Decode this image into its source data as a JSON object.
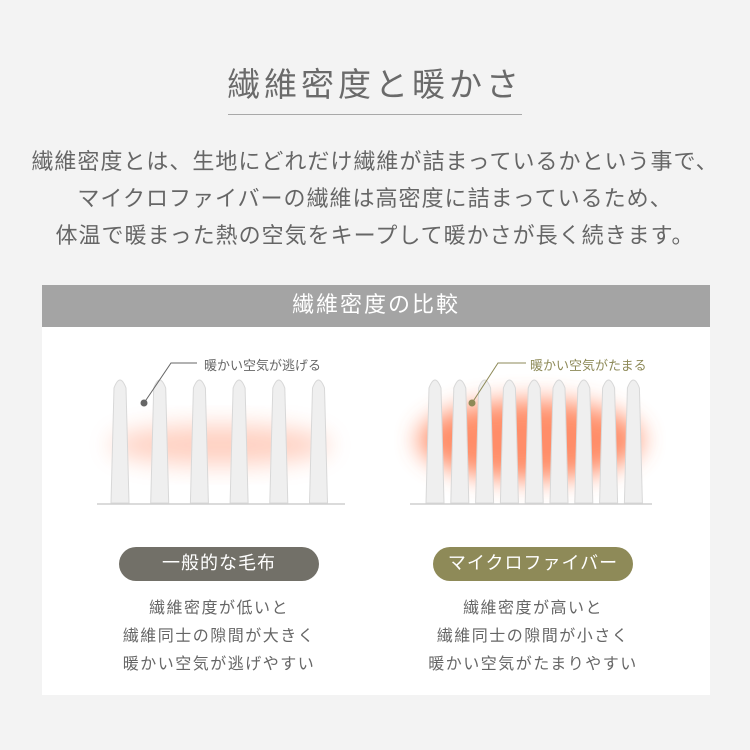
{
  "title": "繊維密度と暖かさ",
  "intro_lines": [
    "繊維密度とは、生地にどれだけ繊維が詰まっているかという事で、",
    "マイクロファイバーの繊維は高密度に詰まっているため、",
    "体温で暖まった熱の空気をキープして暖かさが長く続きます。"
  ],
  "comparison": {
    "heading": "繊維密度の比較",
    "left": {
      "callout": "暖かい空気が逃げる",
      "label": "一般的な毛布",
      "fiber_count": 6,
      "warmth_level": "low",
      "desc": [
        "繊維密度が低いと",
        "繊維同士の隙間が大きく",
        "暖かい空気が逃げやすい"
      ],
      "color": "#727068"
    },
    "right": {
      "callout": "暖かい空気がたまる",
      "label": "マイクロファイバー",
      "fiber_count": 9,
      "warmth_level": "high",
      "desc": [
        "繊維密度が高いと",
        "繊維同士の隙間が小さく",
        "暖かい空気がたまりやすい"
      ],
      "color": "#8e8a58"
    }
  },
  "colors": {
    "warm_air": "#ff7a50",
    "fiber": "#efefef",
    "band": "#a4a4a4"
  }
}
